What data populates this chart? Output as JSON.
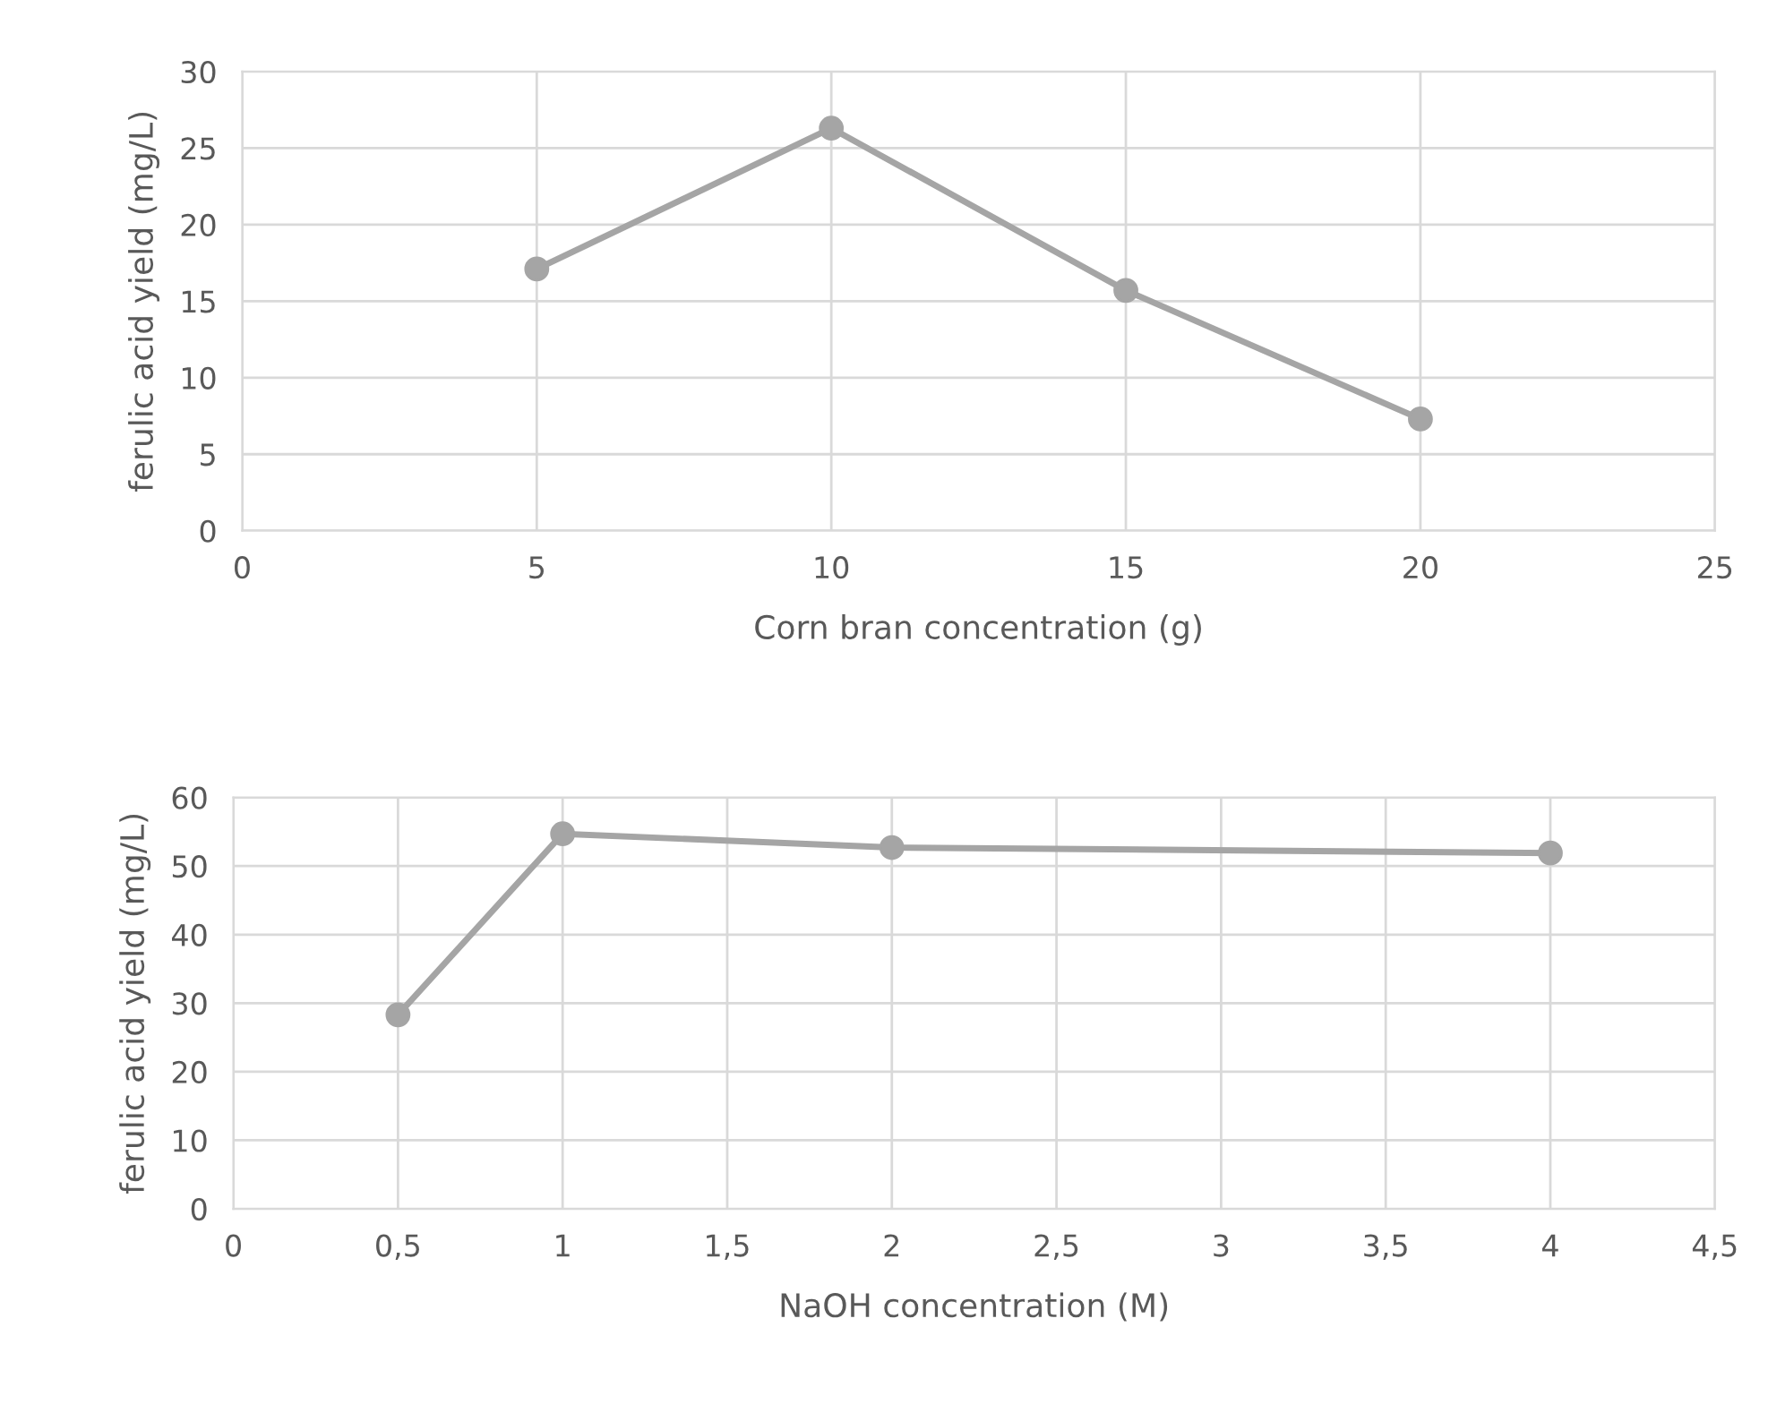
{
  "chart_data": [
    {
      "type": "line",
      "xlabel": "Corn bran concentration (g)",
      "ylabel": "ferulic acid yield (mg/L)",
      "x": [
        5,
        10,
        15,
        20
      ],
      "series": [
        {
          "color": "#a5a5a5",
          "values": [
            17.1,
            26.3,
            15.7,
            7.3
          ]
        }
      ],
      "xlim": [
        0,
        25
      ],
      "xticks": [
        0,
        5,
        10,
        15,
        20,
        25
      ],
      "ylim": [
        0,
        30
      ],
      "yticks": [
        0,
        5,
        10,
        15,
        20,
        25,
        30
      ],
      "grid": true,
      "marker": "circle",
      "line_style": "solid"
    },
    {
      "type": "line",
      "xlabel": "NaOH concentration (M)",
      "ylabel": "ferulic acid yield (mg/L)",
      "x": [
        0.5,
        1,
        2,
        4
      ],
      "series": [
        {
          "color": "#a5a5a5",
          "values": [
            28.3,
            54.7,
            52.7,
            51.9
          ]
        }
      ],
      "xlim": [
        0,
        4.5
      ],
      "xticks": [
        0,
        {
          "value": 0.5,
          "label": "0,5"
        },
        1,
        {
          "value": 1.5,
          "label": "1,5"
        },
        2,
        {
          "value": 2.5,
          "label": "2,5"
        },
        3,
        {
          "value": 3.5,
          "label": "3,5"
        },
        4,
        {
          "value": 4.5,
          "label": "4,5"
        }
      ],
      "ylim": [
        0,
        60
      ],
      "yticks": [
        0,
        10,
        20,
        30,
        40,
        50,
        60
      ],
      "grid": true,
      "marker": "circle",
      "line_style": "solid"
    }
  ]
}
